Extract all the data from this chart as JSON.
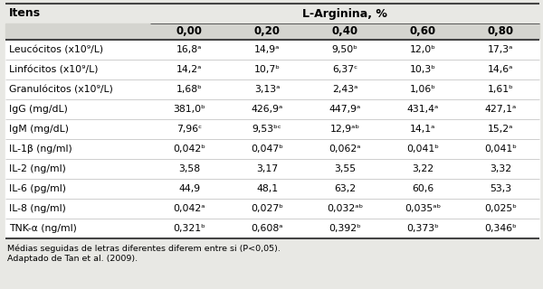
{
  "header_col": "Itens",
  "header_group": "L-Arginina, %",
  "col_headers": [
    "0,00",
    "0,20",
    "0,40",
    "0,60",
    "0,80"
  ],
  "rows": [
    [
      "Leucócitos (x10⁹/L)",
      "16,8ᵃ",
      "14,9ᵃ",
      "9,50ᵇ",
      "12,0ᵇ",
      "17,3ᵃ"
    ],
    [
      "Linfócitos (x10⁹/L)",
      "14,2ᵃ",
      "10,7ᵇ",
      "6,37ᶜ",
      "10,3ᵇ",
      "14,6ᵃ"
    ],
    [
      "Granulócitos (x10⁹/L)",
      "1,68ᵇ",
      "3,13ᵃ",
      "2,43ᵃ",
      "1,06ᵇ",
      "1,61ᵇ"
    ],
    [
      "IgG (mg/dL)",
      "381,0ᵇ",
      "426,9ᵃ",
      "447,9ᵃ",
      "431,4ᵃ",
      "427,1ᵃ"
    ],
    [
      "IgM (mg/dL)",
      "7,96ᶜ",
      "9,53ᵇᶜ",
      "12,9ᵃᵇ",
      "14,1ᵃ",
      "15,2ᵃ"
    ],
    [
      "IL-1β (ng/ml)",
      "0,042ᵇ",
      "0,047ᵇ",
      "0,062ᵃ",
      "0,041ᵇ",
      "0,041ᵇ"
    ],
    [
      "IL-2 (ng/ml)",
      "3,58",
      "3,17",
      "3,55",
      "3,22",
      "3,32"
    ],
    [
      "IL-6 (pg/ml)",
      "44,9",
      "48,1",
      "63,2",
      "60,6",
      "53,3"
    ],
    [
      "IL-8 (ng/ml)",
      "0,042ᵃ",
      "0,027ᵇ",
      "0,032ᵃᵇ",
      "0,035ᵃᵇ",
      "0,025ᵇ"
    ],
    [
      "TNK-α (ng/ml)",
      "0,321ᵇ",
      "0,608ᵃ",
      "0,392ᵇ",
      "0,373ᵇ",
      "0,346ᵇ"
    ]
  ],
  "footnote1": "Médias seguidas de letras diferentes diferem entre si (P<0,05).",
  "footnote2": "Adaptado de Tan et al. (2009).",
  "bg_color": "#e8e8e4",
  "white_color": "#ffffff",
  "line_color": "#444444",
  "font_size": 7.8,
  "header_font_size": 8.5,
  "footnote_font_size": 6.8
}
